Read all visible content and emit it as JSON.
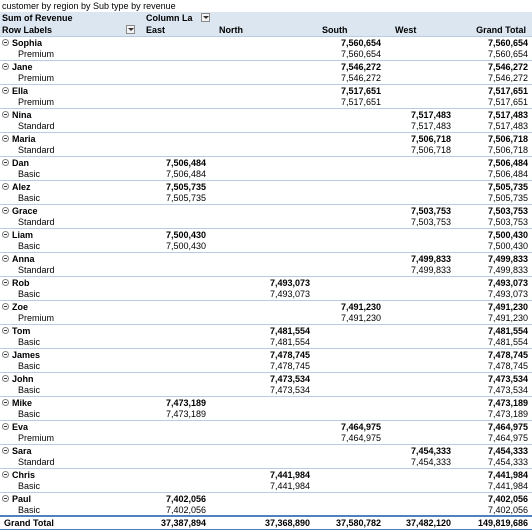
{
  "title": "customer by region by Sub type by revenue",
  "header": {
    "sum_label": "Sum of Revenue",
    "column_labels": "Column La",
    "row_labels": "Row Labels",
    "columns": [
      "East",
      "North",
      "South",
      "West",
      "Grand Total"
    ]
  },
  "rows": [
    {
      "name": "Sophia",
      "sub": "Premium",
      "east": "",
      "north": "",
      "south": "7,560,654",
      "west": "",
      "total": "7,560,654"
    },
    {
      "name": "Jane",
      "sub": "Premium",
      "east": "",
      "north": "",
      "south": "7,546,272",
      "west": "",
      "total": "7,546,272"
    },
    {
      "name": "Ella",
      "sub": "Premium",
      "east": "",
      "north": "",
      "south": "7,517,651",
      "west": "",
      "total": "7,517,651"
    },
    {
      "name": "Nina",
      "sub": "Standard",
      "east": "",
      "north": "",
      "south": "",
      "west": "7,517,483",
      "total": "7,517,483"
    },
    {
      "name": "Maria",
      "sub": "Standard",
      "east": "",
      "north": "",
      "south": "",
      "west": "7,506,718",
      "total": "7,506,718"
    },
    {
      "name": "Dan",
      "sub": "Basic",
      "east": "7,506,484",
      "north": "",
      "south": "",
      "west": "",
      "total": "7,506,484"
    },
    {
      "name": "Alez",
      "sub": "Basic",
      "east": "7,505,735",
      "north": "",
      "south": "",
      "west": "",
      "total": "7,505,735"
    },
    {
      "name": "Grace",
      "sub": "Standard",
      "east": "",
      "north": "",
      "south": "",
      "west": "7,503,753",
      "total": "7,503,753"
    },
    {
      "name": "Liam",
      "sub": "Basic",
      "east": "7,500,430",
      "north": "",
      "south": "",
      "west": "",
      "total": "7,500,430"
    },
    {
      "name": "Anna",
      "sub": "Standard",
      "east": "",
      "north": "",
      "south": "",
      "west": "7,499,833",
      "total": "7,499,833"
    },
    {
      "name": "Rob",
      "sub": "Basic",
      "east": "",
      "north": "7,493,073",
      "south": "",
      "west": "",
      "total": "7,493,073"
    },
    {
      "name": "Zoe",
      "sub": "Premium",
      "east": "",
      "north": "",
      "south": "7,491,230",
      "west": "",
      "total": "7,491,230"
    },
    {
      "name": "Tom",
      "sub": "Basic",
      "east": "",
      "north": "7,481,554",
      "south": "",
      "west": "",
      "total": "7,481,554"
    },
    {
      "name": "James",
      "sub": "Basic",
      "east": "",
      "north": "7,478,745",
      "south": "",
      "west": "",
      "total": "7,478,745"
    },
    {
      "name": "John",
      "sub": "Basic",
      "east": "",
      "north": "7,473,534",
      "south": "",
      "west": "",
      "total": "7,473,534"
    },
    {
      "name": "Mike",
      "sub": "Basic",
      "east": "7,473,189",
      "north": "",
      "south": "",
      "west": "",
      "total": "7,473,189"
    },
    {
      "name": "Eva",
      "sub": "Premium",
      "east": "",
      "north": "",
      "south": "7,464,975",
      "west": "",
      "total": "7,464,975"
    },
    {
      "name": "Sara",
      "sub": "Standard",
      "east": "",
      "north": "",
      "south": "",
      "west": "7,454,333",
      "total": "7,454,333"
    },
    {
      "name": "Chris",
      "sub": "Basic",
      "east": "",
      "north": "7,441,984",
      "south": "",
      "west": "",
      "total": "7,441,984"
    },
    {
      "name": "Paul",
      "sub": "Basic",
      "east": "7,402,056",
      "north": "",
      "south": "",
      "west": "",
      "total": "7,402,056"
    }
  ],
  "grand_total": {
    "label": "Grand Total",
    "east": "37,387,894",
    "north": "37,368,890",
    "south": "37,580,782",
    "west": "37,482,120",
    "total": "149,819,686"
  }
}
